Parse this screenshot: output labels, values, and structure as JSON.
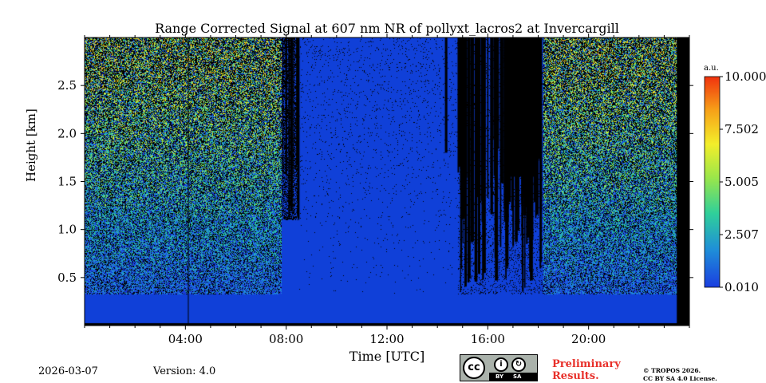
{
  "chart_data": {
    "type": "heatmap",
    "title": "Range Corrected Signal at 607 nm NR of pollyxt_lacros2 at Invercargill",
    "xlabel": "Time [UTC]",
    "ylabel": "Height [km]",
    "x_range_hours": [
      0,
      24
    ],
    "y_range_km": [
      0,
      3.0
    ],
    "x_ticks": [
      {
        "value": 4,
        "label": "04:00"
      },
      {
        "value": 8,
        "label": "08:00"
      },
      {
        "value": 12,
        "label": "12:00"
      },
      {
        "value": 16,
        "label": "16:00"
      },
      {
        "value": 20,
        "label": "20:00"
      }
    ],
    "y_ticks": [
      {
        "value": 0.5,
        "label": "0.5"
      },
      {
        "value": 1.0,
        "label": "1.0"
      },
      {
        "value": 1.5,
        "label": "1.5"
      },
      {
        "value": 2.0,
        "label": "2.0"
      },
      {
        "value": 2.5,
        "label": "2.5"
      }
    ],
    "colorbar": {
      "unit": "a.u.",
      "range": [
        0.01,
        10.0
      ],
      "ticks": [
        "0.010",
        "2.507",
        "5.005",
        "7.502",
        "10.000"
      ],
      "colormap": [
        "#1a3ee0",
        "#1f8fd8",
        "#2fcf9a",
        "#9ae64a",
        "#f3ee2a",
        "#f7a118",
        "#f0320e"
      ]
    },
    "scene": {
      "background_value_color": "#1040d8",
      "no_data_color": "#000000",
      "measurement_end_hour": 23.5,
      "near_surface_band_km": [
        0.0,
        0.35
      ],
      "regions": [
        {
          "from_hour": 0.0,
          "to_hour": 7.8,
          "description": "noisy high-signal speckle",
          "top_km": 3.0
        },
        {
          "from_hour": 7.8,
          "to_hour": 8.5,
          "description": "cloud/no-data streaks above",
          "cut_km": 1.1
        },
        {
          "from_hour": 8.5,
          "to_hour": 14.8,
          "description": "uniform low signal",
          "top_km": 3.0
        },
        {
          "from_hour": 14.8,
          "to_hour": 18.0,
          "description": "blue with black streaks"
        },
        {
          "from_hour": 18.0,
          "to_hour": 23.5,
          "description": "noisy speckle with dark lower streaks"
        }
      ]
    }
  },
  "footer": {
    "date": "2026-03-07",
    "version": "Version: 4.0",
    "preliminary_line1": "Preliminary",
    "preliminary_line2": "Results.",
    "copyright_line1": "© TROPOS 2026.",
    "copyright_line2": "CC BY SA 4.0 License.",
    "cc_badge": {
      "cc": "cc",
      "by": "BY",
      "sa": "SA"
    }
  }
}
